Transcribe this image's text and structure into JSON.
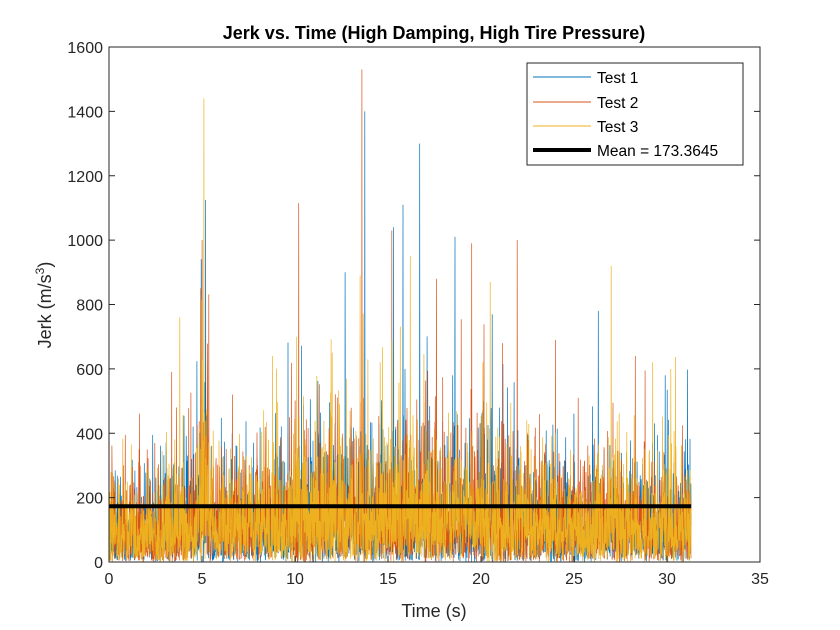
{
  "chart_data": {
    "type": "line",
    "title": "Jerk vs. Time (High Damping, High Tire Pressure)",
    "xlabel": "Time (s)",
    "ylabel": "Jerk (m/s^3)",
    "ylabel_base": "Jerk (m/s",
    "ylabel_sup": "3",
    "ylabel_end": ")",
    "xlim": [
      0,
      35
    ],
    "ylim": [
      0,
      1600
    ],
    "xticks": [
      "0",
      "5",
      "10",
      "15",
      "20",
      "25",
      "30",
      "35"
    ],
    "yticks": [
      "0",
      "200",
      "400",
      "600",
      "800",
      "1000",
      "1200",
      "1400",
      "1600"
    ],
    "grid": false,
    "legend_position": "top-right",
    "duration_s": 31.3,
    "series": [
      {
        "name": "Test 1",
        "color": "#0072BD",
        "peaks": [
          [
            5.2,
            1125
          ],
          [
            13.75,
            1400
          ],
          [
            16.7,
            1300
          ],
          [
            15.8,
            1110
          ],
          [
            15.3,
            1040
          ],
          [
            18.6,
            1010
          ],
          [
            12.7,
            900
          ],
          [
            20.6,
            770
          ],
          [
            26.3,
            780
          ],
          [
            29.9,
            580
          ],
          [
            31.2,
            200
          ]
        ]
      },
      {
        "name": "Test 2",
        "color": "#D95319",
        "peaks": [
          [
            13.6,
            1530
          ],
          [
            10.2,
            1115
          ],
          [
            5.0,
            1000
          ],
          [
            21.95,
            1000
          ],
          [
            15.2,
            1030
          ],
          [
            19.5,
            990
          ],
          [
            17.6,
            880
          ],
          [
            24.0,
            690
          ],
          [
            28.3,
            640
          ]
        ]
      },
      {
        "name": "Test 3",
        "color": "#EDB120",
        "peaks": [
          [
            5.1,
            1440
          ],
          [
            13.5,
            890
          ],
          [
            27.0,
            920
          ],
          [
            20.5,
            870
          ],
          [
            3.8,
            760
          ],
          [
            16.2,
            950
          ],
          [
            12.0,
            650
          ],
          [
            8.8,
            640
          ],
          [
            30.2,
            600
          ]
        ]
      }
    ],
    "mean": {
      "name": "Mean = 173.3645",
      "value": 173.3645,
      "color": "#000000"
    }
  }
}
